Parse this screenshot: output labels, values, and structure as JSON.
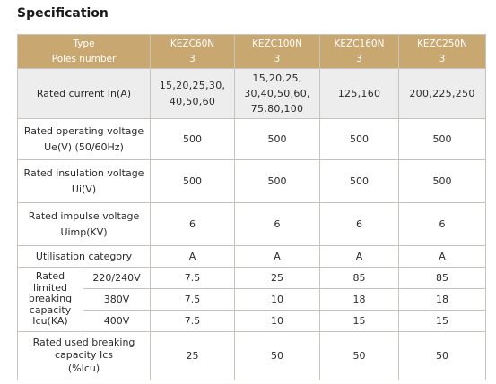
{
  "title": "Specification",
  "header": {
    "type_label": "Type",
    "poles_label": "Poles number",
    "models": [
      {
        "name": "KEZC60N",
        "poles": "3"
      },
      {
        "name": "KEZC100N",
        "poles": "3"
      },
      {
        "name": "KEZC160N",
        "poles": "3"
      },
      {
        "name": "KEZC250N",
        "poles": "3"
      }
    ]
  },
  "rows": {
    "rated_current": {
      "label": "Rated current In(A)",
      "values": [
        [
          "15,20,25,30,",
          "40,50,60"
        ],
        [
          "15,20,25,",
          "30,40,50,60,",
          "75,80,100"
        ],
        [
          "125,160"
        ],
        [
          "200,225,250"
        ]
      ]
    },
    "operating_voltage": {
      "label": [
        "Rated operating voltage",
        "Ue(V) (50/60Hz)"
      ],
      "values": [
        "500",
        "500",
        "500",
        "500"
      ]
    },
    "insulation_voltage": {
      "label": [
        "Rated insulation voltage",
        "Ui(V)"
      ],
      "values": [
        "500",
        "500",
        "500",
        "500"
      ]
    },
    "impulse_voltage": {
      "label": [
        "Rated impulse voltage",
        "Uimp(KV)"
      ],
      "values": [
        "6",
        "6",
        "6",
        "6"
      ]
    },
    "utilisation": {
      "label": "Utilisation category",
      "values": [
        "A",
        "A",
        "A",
        "A"
      ]
    },
    "breaking": {
      "label": [
        "Rated",
        "limited",
        "breaking",
        "capacity",
        "Icu(KA)"
      ],
      "sub": [
        {
          "voltage": "220/240V",
          "values": [
            "7.5",
            "25",
            "85",
            "85"
          ]
        },
        {
          "voltage": "380V",
          "values": [
            "7.5",
            "10",
            "18",
            "18"
          ]
        },
        {
          "voltage": "400V",
          "values": [
            "7.5",
            "10",
            "15",
            "15"
          ]
        }
      ]
    },
    "used_breaking": {
      "label": [
        "Rated used breaking",
        "capacity Ics",
        "(%Icu)"
      ],
      "values": [
        "25",
        "50",
        "50",
        "50"
      ]
    }
  }
}
